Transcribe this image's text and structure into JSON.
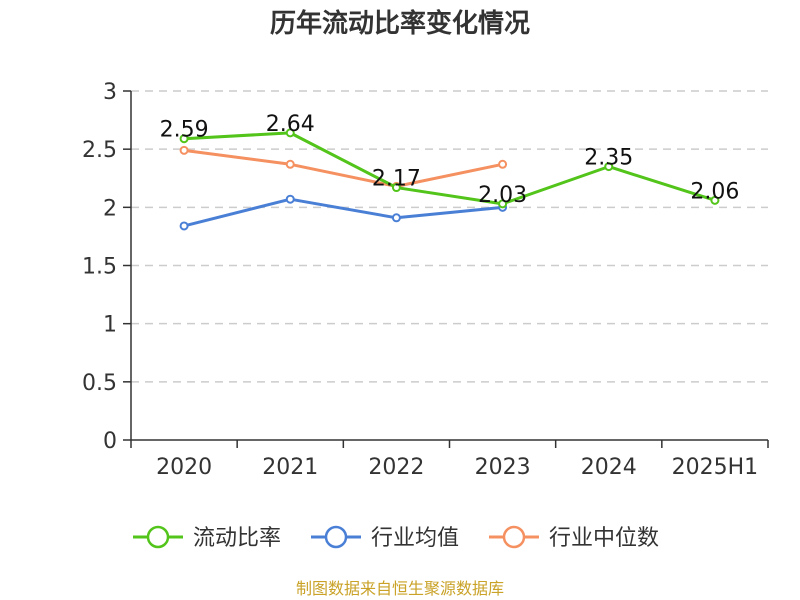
{
  "chart_data": {
    "type": "line",
    "title": "历年流动比率变化情况",
    "categories": [
      "2020",
      "2021",
      "2022",
      "2023",
      "2024",
      "2025H1"
    ],
    "ylim": [
      0,
      3
    ],
    "yticks": [
      "0",
      "0.5",
      "1",
      "1.5",
      "2",
      "2.5",
      "3"
    ],
    "grid": true,
    "legend_position": "bottom",
    "series": [
      {
        "name": "流动比率",
        "color": "#52c41a",
        "values": [
          2.59,
          2.64,
          2.17,
          2.03,
          2.35,
          2.06
        ],
        "labels": [
          "2.59",
          "2.64",
          "2.17",
          "2.03",
          "2.35",
          "2.06"
        ]
      },
      {
        "name": "行业均值",
        "color": "#4a7fd6",
        "values": [
          1.84,
          2.07,
          1.91,
          2.0,
          null,
          null
        ]
      },
      {
        "name": "行业中位数",
        "color": "#f59060",
        "values": [
          2.49,
          2.37,
          2.18,
          2.37,
          null,
          null
        ]
      }
    ]
  },
  "footer": {
    "source_text": "制图数据来自恒生聚源数据库",
    "source_color": "#c9a227"
  }
}
